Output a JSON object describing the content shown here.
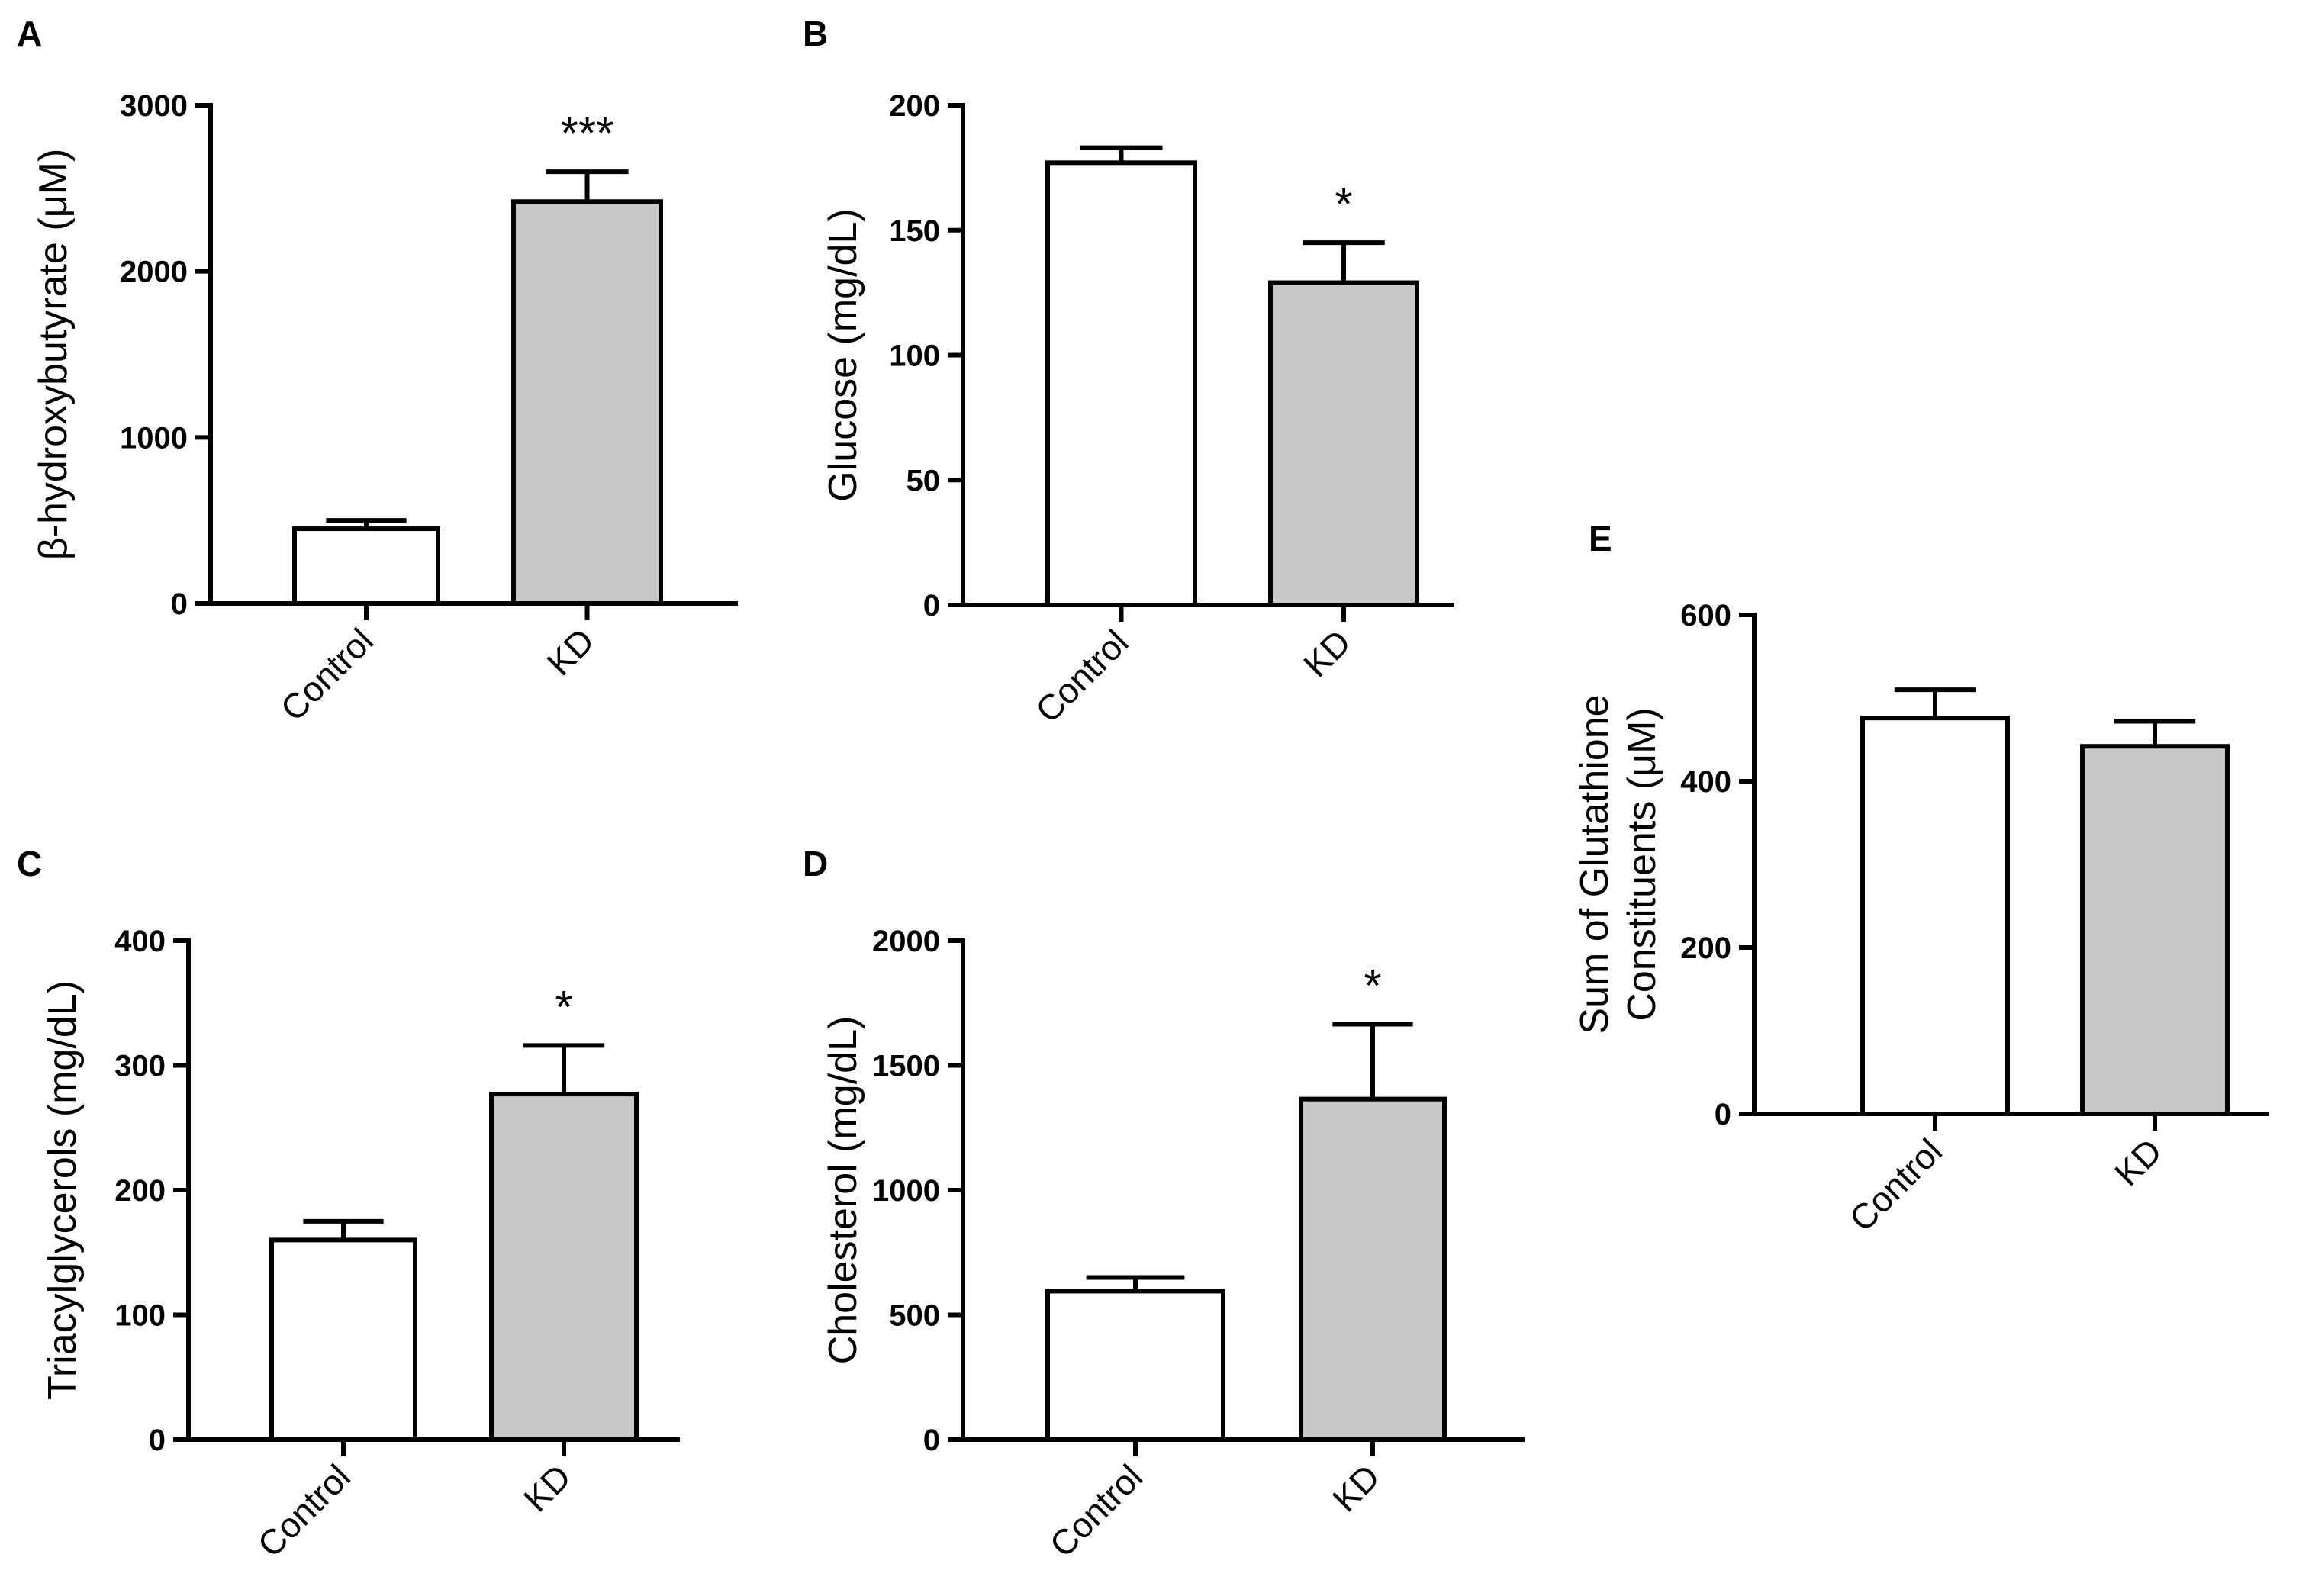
{
  "figure": {
    "bar_colors": [
      "#ffffff",
      "#c8c8c8"
    ],
    "stroke_color": "#000000"
  },
  "chart_data": [
    {
      "panel": "A",
      "type": "bar",
      "categories": [
        "Control",
        "KD"
      ],
      "values": [
        450,
        2420
      ],
      "errors": [
        50,
        180
      ],
      "significance": [
        "",
        "***"
      ],
      "ylabel": "β-hydroxybutyrate (μM)",
      "ylim": [
        0,
        3000
      ],
      "yticks": [
        0,
        1000,
        2000,
        3000
      ],
      "ytick_labels": [
        "0",
        "1000",
        "2000",
        "3000"
      ]
    },
    {
      "panel": "B",
      "type": "bar",
      "categories": [
        "Control",
        "KD"
      ],
      "values": [
        177,
        129
      ],
      "errors": [
        6,
        16
      ],
      "significance": [
        "",
        "*"
      ],
      "ylabel": "Glucose (mg/dL)",
      "ylim": [
        0,
        200
      ],
      "yticks": [
        0,
        50,
        100,
        150,
        200
      ],
      "ytick_labels": [
        "0",
        "50",
        "100",
        "150",
        "200"
      ]
    },
    {
      "panel": "C",
      "type": "bar",
      "categories": [
        "Control",
        "KD"
      ],
      "values": [
        160,
        277
      ],
      "errors": [
        15,
        39
      ],
      "significance": [
        "",
        "*"
      ],
      "ylabel": "Triacylglycerols (mg/dL)",
      "ylim": [
        0,
        400
      ],
      "yticks": [
        0,
        100,
        200,
        300,
        400
      ],
      "ytick_labels": [
        "0",
        "100",
        "200",
        "300",
        "400"
      ]
    },
    {
      "panel": "D",
      "type": "bar",
      "categories": [
        "Control",
        "KD"
      ],
      "values": [
        595,
        1365
      ],
      "errors": [
        55,
        300
      ],
      "significance": [
        "",
        "*"
      ],
      "ylabel": "Cholesterol (mg/dL)",
      "ylim": [
        0,
        2000
      ],
      "yticks": [
        0,
        500,
        1000,
        1500,
        2000
      ],
      "ytick_labels": [
        "0",
        "500",
        "1000",
        "1500",
        "2000"
      ]
    },
    {
      "panel": "E",
      "type": "bar",
      "categories": [
        "Control",
        "KD"
      ],
      "values": [
        476,
        442
      ],
      "errors": [
        34,
        30
      ],
      "significance": [
        "",
        ""
      ],
      "ylabel": [
        "Sum of Glutathione",
        "Constituents (μM)"
      ],
      "ylim": [
        0,
        600
      ],
      "yticks": [
        0,
        200,
        400,
        600
      ],
      "ytick_labels": [
        "0",
        "200",
        "400",
        "600"
      ]
    }
  ]
}
